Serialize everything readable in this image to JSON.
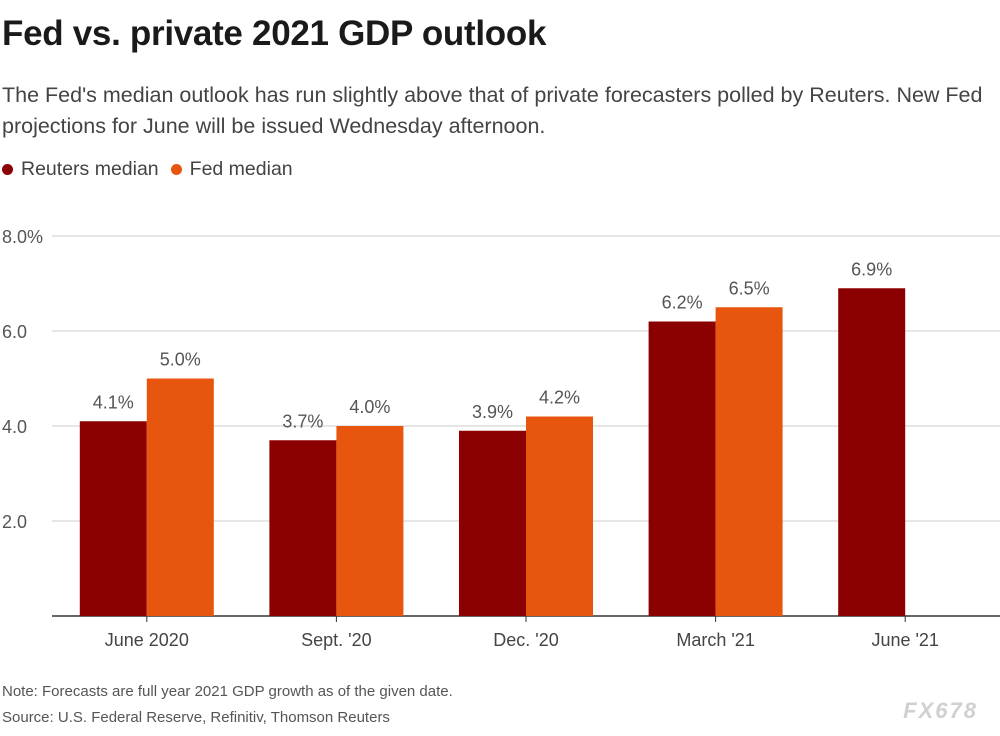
{
  "header": {
    "title": "Fed vs. private 2021 GDP outlook",
    "subtitle": "The Fed's median outlook has run slightly above that of private forecasters polled by Reuters. New Fed projections for June will be issued Wednesday afternoon."
  },
  "legend": {
    "items": [
      {
        "label": "Reuters median",
        "color": "#8b0000"
      },
      {
        "label": "Fed median",
        "color": "#e8550f"
      }
    ],
    "placement": "top-left"
  },
  "chart_data": {
    "type": "bar",
    "categories": [
      "June 2020",
      "Sept. '20",
      "Dec. '20",
      "March '21",
      "June '21"
    ],
    "series": [
      {
        "name": "Reuters median",
        "color": "#8b0000",
        "values": [
          4.1,
          3.7,
          3.9,
          6.2,
          6.9
        ],
        "labels": [
          "4.1%",
          "3.7%",
          "3.9%",
          "6.2%",
          "6.9%"
        ]
      },
      {
        "name": "Fed median",
        "color": "#e8550f",
        "values": [
          5.0,
          4.0,
          4.2,
          6.5,
          null
        ],
        "labels": [
          "5.0%",
          "4.0%",
          "4.2%",
          "6.5%",
          ""
        ]
      }
    ],
    "ylim": [
      0,
      8
    ],
    "yticks": [
      2,
      4,
      6,
      8
    ],
    "ytick_labels": [
      "2.0",
      "4.0",
      "6.0",
      "8.0%"
    ],
    "grid": true,
    "xlabel": "",
    "ylabel": ""
  },
  "footer": {
    "note": "Note: Forecasts are full year 2021 GDP growth as of the given date.",
    "source": "Source: U.S. Federal Reserve, Refinitiv, Thomson Reuters",
    "watermark": "FX678"
  }
}
